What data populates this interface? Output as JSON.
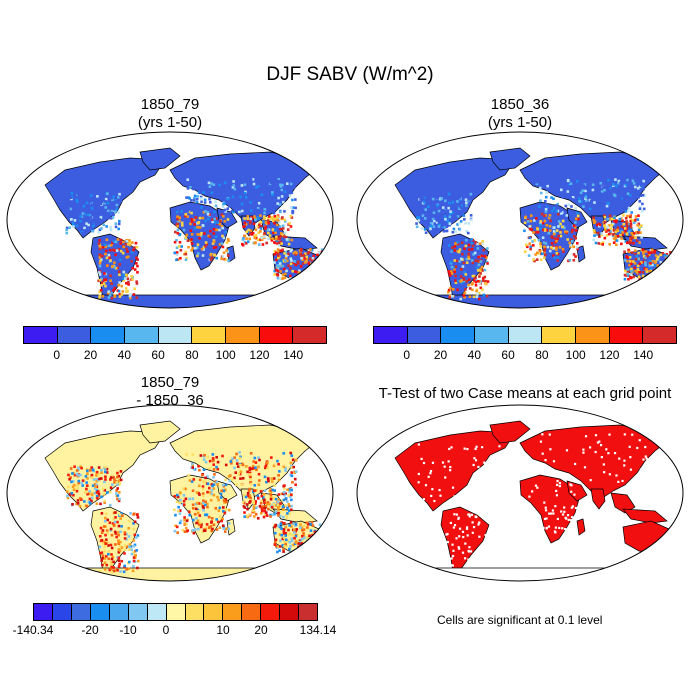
{
  "title": "DJF SABV (W/m^2)",
  "panels": [
    {
      "title1": "1850_79",
      "title2": "(yrs 1-50)"
    },
    {
      "title1": "1850_36",
      "title2": "(yrs 1-50)"
    },
    {
      "title1": "1850_79",
      "title2": "- 1850_36"
    },
    {
      "title1": "T-Test of two Case means at each grid point",
      "title2": ""
    }
  ],
  "colorbar_top": {
    "colors": [
      "#3d1cf2",
      "#3d5de0",
      "#1a8ef0",
      "#58b7ee",
      "#bde6f5",
      "#fdd33f",
      "#fb9318",
      "#f80c0c",
      "#d42a2a"
    ],
    "labels": [
      "0",
      "20",
      "40",
      "60",
      "80",
      "100",
      "120",
      "140"
    ]
  },
  "colorbar_diff": {
    "colors": [
      "#3d1cf2",
      "#2b46e8",
      "#3d6ce0",
      "#1a8ef0",
      "#4aa8ef",
      "#80c8f1",
      "#bfe8f6",
      "#fff6a6",
      "#fde063",
      "#fbc43b",
      "#fb9d1c",
      "#f76a11",
      "#f31a0b",
      "#d40a0a",
      "#c92f2f"
    ],
    "labels": [
      "-140.34",
      "-20",
      "-10",
      "0",
      "10",
      "20",
      "134.14"
    ]
  },
  "ttest_note": "Cells are significant at 0.1 level",
  "colors": {
    "ocean": "#ffffff",
    "land_base_abs": "#3d5de0",
    "land_warm_abs": "#f1542a",
    "land_base_diff": "#fff2a0",
    "land_ttest": "#f20f0f",
    "antarctica_abs": "#3d5de0",
    "antarctica_diff": "#fff2a0"
  }
}
